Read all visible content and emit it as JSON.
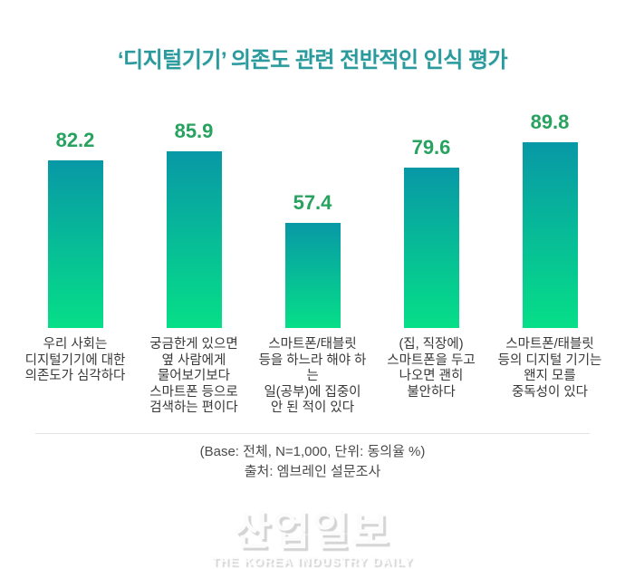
{
  "title": "‘디지털기기’ 의존도 관련 전반적인 인식 평가",
  "chart_data": {
    "type": "bar",
    "title": "‘디지털기기’ 의존도 관련 전반적인 인식 평가",
    "unit": "동의율 %",
    "base": "전체, N=1,000",
    "values": [
      82.2,
      85.9,
      57.4,
      79.6,
      89.8
    ],
    "categories": [
      [
        "우리 사회는",
        "디지털기기에 대한",
        "의존도가 심각하다"
      ],
      [
        "궁금한게 있으면",
        "옆 사람에게",
        "물어보기보다",
        "스마트폰 등으로",
        "검색하는 편이다"
      ],
      [
        "스마트폰/태블릿",
        "등을 하느라 해야 하는",
        "일(공부)에 집중이",
        "안 된 적이 있다"
      ],
      [
        "(집, 직장에)",
        "스마트폰을 두고",
        "나오면 괜히",
        "불안하다"
      ],
      [
        "스마트폰/태블릿",
        "등의 디지털 기기는",
        "왠지 모를",
        "중독성이 있다"
      ]
    ],
    "value_label_color": "#27a35f",
    "bar_color_top": "#0898a6",
    "bar_color_bottom": "#06df88",
    "title_color": "#2a9a9c",
    "grid": false,
    "legend": false,
    "ylim": [
      0,
      100
    ]
  },
  "footer": {
    "base_note": "(Base: 전체, N=1,000, 단위: 동의율 %)",
    "source": "출처: 엠브레인 설문조사"
  },
  "watermark": {
    "logo_text": "산업일보",
    "tagline": "THE KOREA INDUSTRY DAILY"
  }
}
